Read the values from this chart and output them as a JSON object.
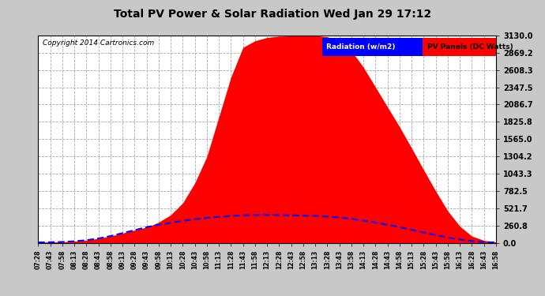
{
  "title": "Total PV Power & Solar Radiation Wed Jan 29 17:12",
  "copyright": "Copyright 2014 Cartronics.com",
  "bg_color": "#c8c8c8",
  "plot_bg_color": "#ffffff",
  "grid_color": "#aaaaaa",
  "pv_color": "#ff0000",
  "radiation_color": "#0000ff",
  "yticks": [
    0.0,
    260.8,
    521.7,
    782.5,
    1043.3,
    1304.2,
    1565.0,
    1825.8,
    2086.7,
    2347.5,
    2608.3,
    2869.2,
    3130.0
  ],
  "ymax": 3130.0,
  "legend_radiation_label": "Radiation (w/m2)",
  "legend_pv_label": "PV Panels (DC Watts)",
  "xtick_labels": [
    "07:28",
    "07:43",
    "07:58",
    "08:13",
    "08:28",
    "08:43",
    "08:58",
    "09:13",
    "09:28",
    "09:43",
    "09:58",
    "10:13",
    "10:28",
    "10:43",
    "10:58",
    "11:13",
    "11:28",
    "11:43",
    "11:58",
    "12:13",
    "12:28",
    "12:43",
    "12:58",
    "13:13",
    "13:28",
    "13:43",
    "13:58",
    "14:13",
    "14:28",
    "14:43",
    "14:58",
    "15:13",
    "15:28",
    "15:43",
    "15:58",
    "16:13",
    "16:28",
    "16:43",
    "16:58"
  ],
  "pv_values": [
    5,
    8,
    12,
    18,
    30,
    50,
    80,
    120,
    170,
    230,
    310,
    420,
    600,
    900,
    1300,
    1900,
    2500,
    2950,
    3050,
    3100,
    3120,
    3125,
    3128,
    3130,
    3110,
    3050,
    2900,
    2650,
    2350,
    2050,
    1750,
    1430,
    1100,
    780,
    480,
    250,
    100,
    35,
    8
  ],
  "rad_values": [
    5,
    8,
    12,
    22,
    38,
    65,
    100,
    145,
    190,
    235,
    270,
    300,
    330,
    355,
    375,
    390,
    405,
    415,
    420,
    420,
    418,
    415,
    410,
    405,
    395,
    380,
    360,
    335,
    305,
    270,
    235,
    195,
    155,
    115,
    78,
    48,
    25,
    10,
    4
  ]
}
